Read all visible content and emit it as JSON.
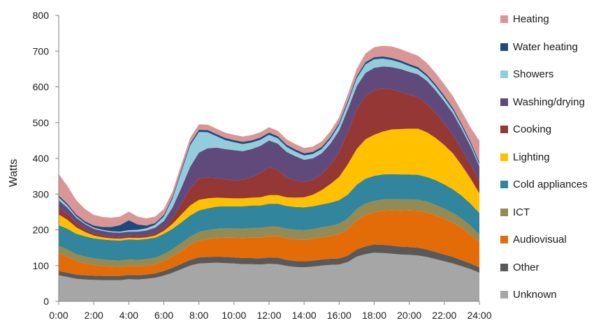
{
  "chart_data": {
    "type": "area",
    "stacked": true,
    "title": "",
    "xlabel": "",
    "ylabel": "Watts",
    "ylim": [
      0,
      800
    ],
    "yticks": [
      0,
      100,
      200,
      300,
      400,
      500,
      600,
      700,
      800
    ],
    "xlim": [
      0,
      24
    ],
    "xticks": [
      "0:00",
      "2:00",
      "4:00",
      "6:00",
      "8:00",
      "10:00",
      "12:00",
      "14:00",
      "16:00",
      "18:00",
      "20:00",
      "22:00",
      "24:00"
    ],
    "grid": false,
    "legend_position": "right",
    "x": [
      0,
      0.5,
      1,
      1.5,
      2,
      2.5,
      3,
      3.5,
      4,
      4.5,
      5,
      5.5,
      6,
      6.5,
      7,
      7.5,
      8,
      8.5,
      9,
      9.5,
      10,
      10.5,
      11,
      11.5,
      12,
      12.5,
      13,
      13.5,
      14,
      14.5,
      15,
      15.5,
      16,
      16.5,
      17,
      17.5,
      18,
      18.5,
      19,
      19.5,
      20,
      20.5,
      21,
      21.5,
      22,
      22.5,
      23,
      23.5,
      24
    ],
    "series": [
      {
        "name": "Unknown",
        "color": "#a6a6a6",
        "values": [
          73,
          68,
          63,
          61,
          60,
          59,
          59,
          59,
          62,
          61,
          63,
          66,
          72,
          80,
          90,
          100,
          106,
          107,
          108,
          107,
          106,
          104,
          104,
          103,
          105,
          104,
          99,
          96,
          95,
          97,
          100,
          102,
          103,
          110,
          125,
          132,
          136,
          135,
          133,
          131,
          130,
          128,
          124,
          118,
          112,
          106,
          98,
          90,
          80
        ]
      },
      {
        "name": "Other",
        "color": "#595959",
        "values": [
          12,
          12,
          12,
          12,
          12,
          12,
          12,
          12,
          12,
          12,
          12,
          12,
          13,
          14,
          15,
          16,
          17,
          17,
          17,
          17,
          17,
          17,
          17,
          17,
          18,
          18,
          17,
          17,
          17,
          17,
          17,
          17,
          17,
          18,
          20,
          22,
          23,
          23,
          23,
          22,
          22,
          22,
          21,
          20,
          19,
          18,
          17,
          16,
          15
        ]
      },
      {
        "name": "Audiovisual",
        "color": "#e36c09",
        "values": [
          50,
          45,
          38,
          33,
          30,
          28,
          26,
          25,
          25,
          25,
          25,
          26,
          28,
          32,
          36,
          42,
          47,
          50,
          52,
          54,
          55,
          56,
          57,
          58,
          59,
          60,
          60,
          60,
          60,
          61,
          62,
          64,
          68,
          74,
          82,
          88,
          90,
          95,
          98,
          100,
          102,
          103,
          104,
          103,
          100,
          96,
          90,
          80,
          70
        ]
      },
      {
        "name": "ICT",
        "color": "#948a54",
        "values": [
          20,
          20,
          19,
          19,
          18,
          18,
          18,
          18,
          18,
          18,
          18,
          18,
          19,
          20,
          22,
          23,
          24,
          25,
          26,
          26,
          26,
          26,
          27,
          27,
          27,
          27,
          27,
          27,
          27,
          27,
          28,
          28,
          29,
          30,
          31,
          32,
          32,
          32,
          32,
          32,
          31,
          31,
          30,
          29,
          28,
          27,
          26,
          25,
          22
        ]
      },
      {
        "name": "Cold appliances",
        "color": "#31859c",
        "values": [
          58,
          58,
          57,
          57,
          56,
          56,
          56,
          56,
          56,
          56,
          56,
          56,
          57,
          57,
          58,
          59,
          60,
          61,
          62,
          62,
          62,
          63,
          63,
          63,
          64,
          64,
          64,
          64,
          64,
          64,
          64,
          65,
          66,
          67,
          68,
          69,
          70,
          70,
          70,
          70,
          70,
          70,
          69,
          69,
          68,
          66,
          64,
          62,
          60
        ]
      },
      {
        "name": "Lighting",
        "color": "#ffc000",
        "values": [
          30,
          25,
          18,
          12,
          8,
          6,
          5,
          5,
          5,
          5,
          5,
          6,
          8,
          14,
          22,
          28,
          30,
          28,
          25,
          23,
          22,
          22,
          22,
          23,
          24,
          24,
          24,
          26,
          28,
          32,
          40,
          52,
          65,
          85,
          100,
          110,
          115,
          120,
          125,
          127,
          128,
          129,
          125,
          118,
          110,
          100,
          85,
          70,
          55
        ]
      },
      {
        "name": "Cooking",
        "color": "#953735",
        "values": [
          20,
          16,
          12,
          9,
          7,
          6,
          6,
          6,
          6,
          6,
          6,
          7,
          8,
          16,
          30,
          48,
          60,
          58,
          55,
          52,
          50,
          52,
          58,
          68,
          78,
          70,
          55,
          48,
          43,
          42,
          45,
          55,
          70,
          90,
          110,
          122,
          125,
          120,
          112,
          104,
          95,
          88,
          80,
          70,
          60,
          52,
          45,
          40,
          35
        ]
      },
      {
        "name": "Washing/drying",
        "color": "#604a7b",
        "values": [
          20,
          18,
          15,
          13,
          12,
          12,
          11,
          11,
          11,
          12,
          13,
          15,
          20,
          30,
          45,
          60,
          72,
          82,
          85,
          85,
          85,
          80,
          78,
          76,
          75,
          74,
          72,
          68,
          62,
          60,
          58,
          58,
          60,
          64,
          66,
          64,
          62,
          62,
          62,
          64,
          64,
          64,
          64,
          63,
          62,
          60,
          56,
          50,
          40
        ]
      },
      {
        "name": "Showers",
        "color": "#93cddd",
        "values": [
          8,
          6,
          4,
          3,
          3,
          3,
          3,
          3,
          4,
          5,
          6,
          8,
          12,
          25,
          45,
          60,
          58,
          45,
          32,
          25,
          22,
          20,
          18,
          17,
          16,
          15,
          14,
          13,
          12,
          12,
          12,
          13,
          15,
          18,
          22,
          24,
          24,
          22,
          20,
          18,
          16,
          14,
          12,
          11,
          10,
          9,
          8,
          7,
          6
        ]
      },
      {
        "name": "Water heating",
        "color": "#1f497d",
        "values": [
          5,
          5,
          5,
          5,
          6,
          8,
          12,
          18,
          28,
          15,
          8,
          5,
          5,
          5,
          6,
          6,
          6,
          6,
          6,
          6,
          6,
          6,
          6,
          6,
          6,
          6,
          6,
          6,
          6,
          6,
          6,
          6,
          6,
          6,
          6,
          6,
          6,
          6,
          6,
          6,
          6,
          6,
          6,
          6,
          6,
          6,
          6,
          6,
          6
        ]
      },
      {
        "name": "Heating",
        "color": "#d99694",
        "values": [
          60,
          50,
          40,
          34,
          30,
          28,
          26,
          24,
          24,
          22,
          20,
          18,
          16,
          15,
          15,
          15,
          15,
          15,
          15,
          15,
          15,
          15,
          15,
          15,
          15,
          15,
          15,
          15,
          15,
          15,
          15,
          16,
          16,
          18,
          20,
          24,
          28,
          30,
          32,
          32,
          32,
          32,
          32,
          32,
          32,
          33,
          35,
          40,
          60
        ]
      }
    ]
  }
}
